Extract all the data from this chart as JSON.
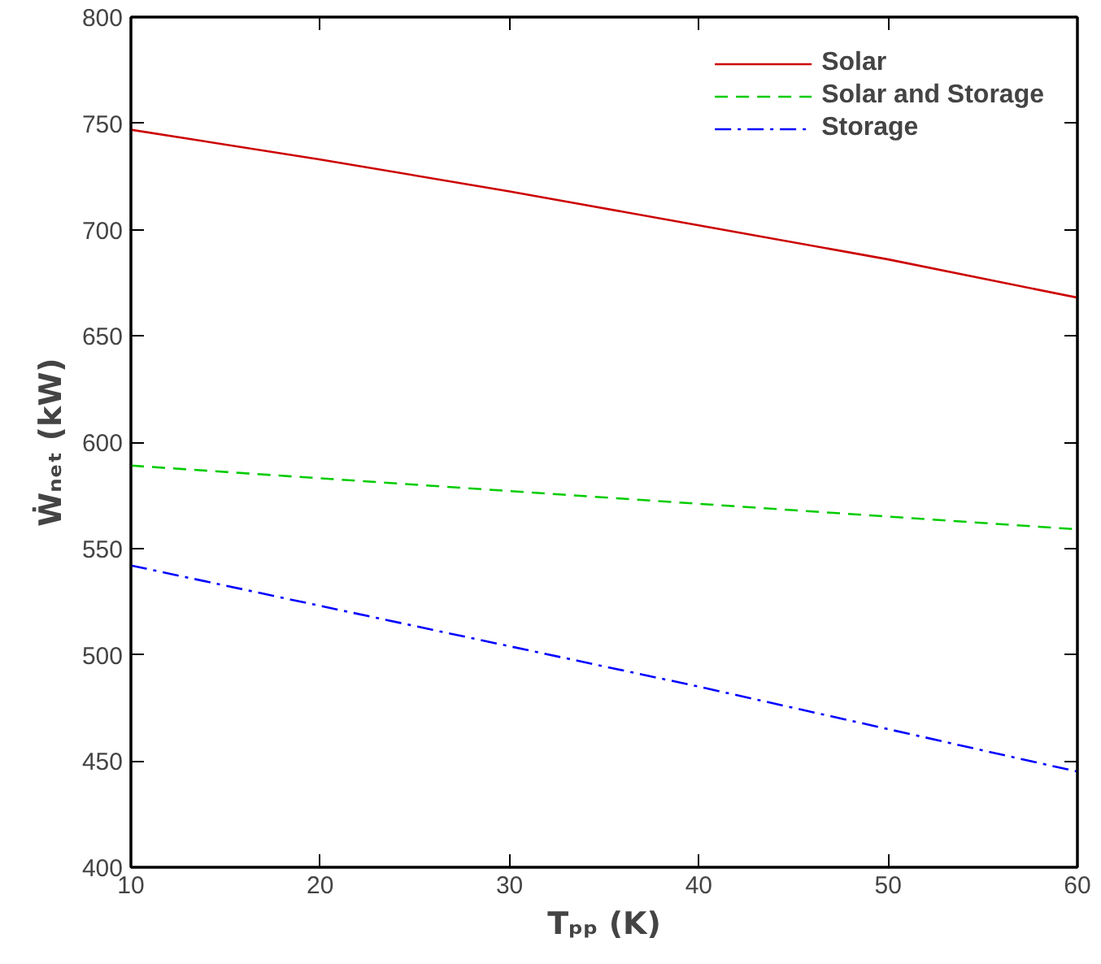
{
  "chart_data": {
    "type": "line",
    "xlabel": "Tₚₚ (K)",
    "ylabel": "Ẇₙₑₜ (kW)",
    "x": [
      10,
      20,
      30,
      40,
      50,
      60
    ],
    "series": [
      {
        "name": "Solar",
        "color": "#cc0000",
        "line_style": "solid",
        "values": [
          747,
          733,
          718,
          702,
          686,
          668
        ]
      },
      {
        "name": "Solar and Storage",
        "color": "#00cc00",
        "line_style": "dashed",
        "values": [
          589,
          583,
          577,
          571,
          565,
          559
        ]
      },
      {
        "name": "Storage",
        "color": "#0000ff",
        "line_style": "dashdot",
        "values": [
          542,
          523,
          504,
          485,
          465,
          445
        ]
      }
    ],
    "xlim": [
      10,
      60
    ],
    "xticks": [
      10,
      20,
      30,
      40,
      50,
      60
    ],
    "ylim": [
      400,
      800
    ],
    "yticks": [
      400,
      450,
      500,
      550,
      600,
      650,
      700,
      750,
      800
    ],
    "grid": false,
    "legend": "top right"
  }
}
